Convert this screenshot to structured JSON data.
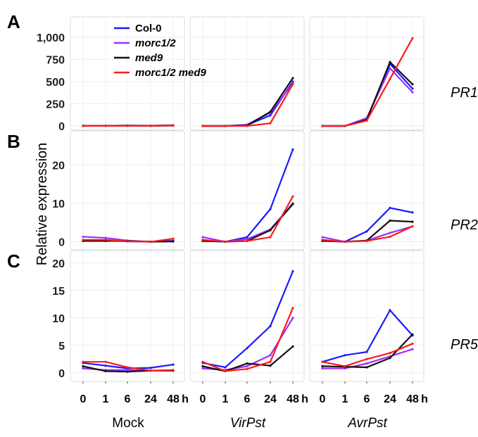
{
  "chart_data": {
    "type": "line",
    "ylabel": "Relative expression",
    "x": [
      "0",
      "1",
      "6",
      "24",
      "48"
    ],
    "x_unit": "h",
    "conditions": [
      "Mock",
      "VirPst",
      "AvrPst"
    ],
    "legend": {
      "placement": "top-left",
      "entries": [
        {
          "name": "Col-0",
          "color": "#1a1aff",
          "italic": false
        },
        {
          "name": "morc1/2",
          "color": "#9b30ff",
          "italic": true
        },
        {
          "name": "med9",
          "color": "#111111",
          "italic": true
        },
        {
          "name": "morc1/2 med9",
          "color": "#ff1a1a",
          "italic": true
        }
      ]
    },
    "rows": [
      {
        "panel": "A",
        "gene": "PR1",
        "ylim": [
          0,
          1150
        ],
        "yticks": [
          0,
          250,
          500,
          750,
          1000
        ],
        "ytick_labels": [
          "0",
          "250",
          "500",
          "750",
          "1,000"
        ],
        "panels": [
          {
            "condition": "Mock",
            "series": [
              [
                2,
                2,
                5,
                3,
                8
              ],
              [
                2,
                2,
                4,
                3,
                6
              ],
              [
                1,
                1,
                3,
                2,
                5
              ],
              [
                1,
                1,
                2,
                2,
                4
              ]
            ]
          },
          {
            "condition": "VirPst",
            "series": [
              [
                0,
                0,
                10,
                120,
                500
              ],
              [
                0,
                0,
                15,
                150,
                480
              ],
              [
                0,
                0,
                5,
                160,
                540
              ],
              [
                0,
                0,
                0,
                30,
                470
              ]
            ]
          },
          {
            "condition": "AvrPst",
            "series": [
              [
                0,
                0,
                80,
                700,
                420
              ],
              [
                0,
                0,
                90,
                650,
                380
              ],
              [
                0,
                0,
                70,
                720,
                470
              ],
              [
                0,
                0,
                60,
                530,
                990
              ]
            ]
          }
        ]
      },
      {
        "panel": "B",
        "gene": "PR2",
        "ylim": [
          -1,
          27
        ],
        "yticks": [
          0,
          10,
          20
        ],
        "ytick_labels": [
          "0",
          "10",
          "20"
        ],
        "panels": [
          {
            "condition": "Mock",
            "series": [
              [
                0.3,
                0.3,
                0.1,
                0,
                0.1
              ],
              [
                1.3,
                1.0,
                0.3,
                0,
                0.3
              ],
              [
                0.2,
                0.2,
                0.2,
                0,
                0.1
              ],
              [
                0.5,
                0.5,
                0.1,
                0,
                0.8
              ]
            ]
          },
          {
            "condition": "VirPst",
            "series": [
              [
                0.2,
                0,
                1.2,
                8.5,
                24
              ],
              [
                1.2,
                0,
                0.7,
                3.2,
                10
              ],
              [
                0.2,
                0,
                0.2,
                3,
                9.8
              ],
              [
                0.5,
                0,
                0.2,
                1.2,
                11.8
              ]
            ]
          },
          {
            "condition": "AvrPst",
            "series": [
              [
                0.2,
                0,
                2.7,
                8.8,
                7.6
              ],
              [
                1.2,
                0,
                0.3,
                2.3,
                4
              ],
              [
                0.3,
                0,
                0.3,
                5.5,
                5.2
              ],
              [
                0.5,
                0,
                0.2,
                1.3,
                4
              ]
            ]
          }
        ]
      },
      {
        "panel": "C",
        "gene": "PR5",
        "ylim": [
          -0.8,
          21
        ],
        "yticks": [
          0,
          5,
          10,
          15,
          20
        ],
        "ytick_labels": [
          "0",
          "5",
          "10",
          "15",
          "20"
        ],
        "panels": [
          {
            "condition": "Mock",
            "series": [
              [
                1.8,
                1.3,
                0.8,
                0.9,
                1.5
              ],
              [
                0.8,
                0.5,
                0.5,
                0.4,
                0.4
              ],
              [
                1.2,
                0.3,
                0.2,
                0.4,
                0.4
              ],
              [
                2.0,
                2.0,
                1.0,
                0.4,
                0.5
              ]
            ]
          },
          {
            "condition": "VirPst",
            "series": [
              [
                1.8,
                1.0,
                4.5,
                8.5,
                18.5
              ],
              [
                0.8,
                0.5,
                1.2,
                3.2,
                10
              ],
              [
                1.2,
                0.3,
                1.7,
                1.3,
                4.8
              ],
              [
                2.0,
                0.3,
                0.7,
                2.0,
                11.8
              ]
            ]
          },
          {
            "condition": "AvrPst",
            "series": [
              [
                2.0,
                3.2,
                3.8,
                11.4,
                6.8
              ],
              [
                0.8,
                0.8,
                1.7,
                3.0,
                4.3
              ],
              [
                1.2,
                1.1,
                1.0,
                2.7,
                7.0
              ],
              [
                2.0,
                1.2,
                2.5,
                3.6,
                5.3
              ]
            ]
          }
        ]
      }
    ]
  }
}
